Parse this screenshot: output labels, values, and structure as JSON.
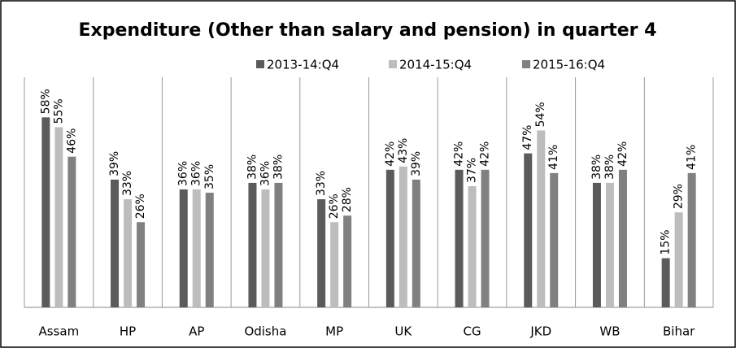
{
  "chart_data": {
    "type": "bar",
    "title": "Expenditure (Other than salary and pension) in quarter 4",
    "categories": [
      "Assam",
      "HP",
      "AP",
      "Odisha",
      "MP",
      "UK",
      "CG",
      "JKD",
      "WB",
      "Bihar"
    ],
    "series": [
      {
        "name": "2013-14:Q4",
        "color": "#5b5b5b",
        "values": [
          58,
          39,
          36,
          38,
          33,
          42,
          42,
          47,
          38,
          15
        ],
        "value_labels": [
          "58%",
          "39%",
          "36%",
          "38%",
          "33%",
          "42%",
          "42%",
          "47%",
          "38%",
          "15%"
        ]
      },
      {
        "name": "2014-15:Q4",
        "color": "#bdbdbd",
        "values": [
          55,
          33,
          36,
          36,
          26,
          43,
          37,
          54,
          38,
          29
        ],
        "value_labels": [
          "55%",
          "33%",
          "36%",
          "36%",
          "26%",
          "43%",
          "37%",
          "54%",
          "38%",
          "29%"
        ]
      },
      {
        "name": "2015-16:Q4",
        "color": "#808080",
        "values": [
          46,
          26,
          35,
          38,
          28,
          39,
          42,
          41,
          42,
          41
        ],
        "value_labels": [
          "46%",
          "26%",
          "35%",
          "38%",
          "28%",
          "39%",
          "42%",
          "41%",
          "42%",
          "41%"
        ]
      }
    ],
    "ylim": [
      0,
      70
    ]
  }
}
